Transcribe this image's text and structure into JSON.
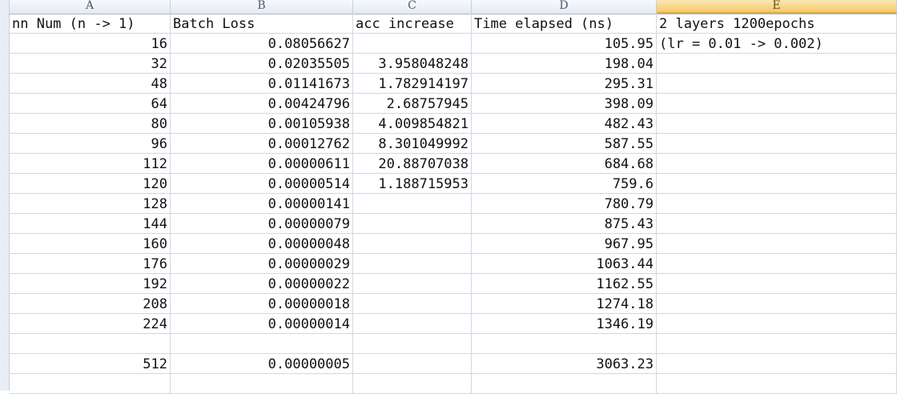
{
  "columns": [
    "A",
    "B",
    "C",
    "D",
    "E"
  ],
  "selected_column": "E",
  "rows": [
    [
      "nn Num (n -> 1)",
      "Batch Loss",
      "acc increase",
      "Time elapsed (ns)",
      "2 layers 1200epochs"
    ],
    [
      "16",
      "0.08056627",
      "",
      "105.95",
      "(lr = 0.01 -> 0.002)"
    ],
    [
      "32",
      "0.02035505",
      "3.958048248",
      "198.04",
      ""
    ],
    [
      "48",
      "0.01141673",
      "1.782914197",
      "295.31",
      ""
    ],
    [
      "64",
      "0.00424796",
      "2.68757945",
      "398.09",
      ""
    ],
    [
      "80",
      "0.00105938",
      "4.009854821",
      "482.43",
      ""
    ],
    [
      "96",
      "0.00012762",
      "8.301049992",
      "587.55",
      ""
    ],
    [
      "112",
      "0.00000611",
      "20.88707038",
      "684.68",
      ""
    ],
    [
      "120",
      "0.00000514",
      "1.188715953",
      "759.6",
      ""
    ],
    [
      "128",
      "0.00000141",
      "",
      "780.79",
      ""
    ],
    [
      "144",
      "0.00000079",
      "",
      "875.43",
      ""
    ],
    [
      "160",
      "0.00000048",
      "",
      "967.95",
      ""
    ],
    [
      "176",
      "0.00000029",
      "",
      "1063.44",
      ""
    ],
    [
      "192",
      "0.00000022",
      "",
      "1162.55",
      ""
    ],
    [
      "208",
      "0.00000018",
      "",
      "1274.18",
      ""
    ],
    [
      "224",
      "0.00000014",
      "",
      "1346.19",
      ""
    ],
    [
      "",
      "",
      "",
      "",
      ""
    ],
    [
      "512",
      "0.00000005",
      "",
      "3063.23",
      ""
    ],
    [
      "",
      "",
      "",
      "",
      ""
    ]
  ]
}
